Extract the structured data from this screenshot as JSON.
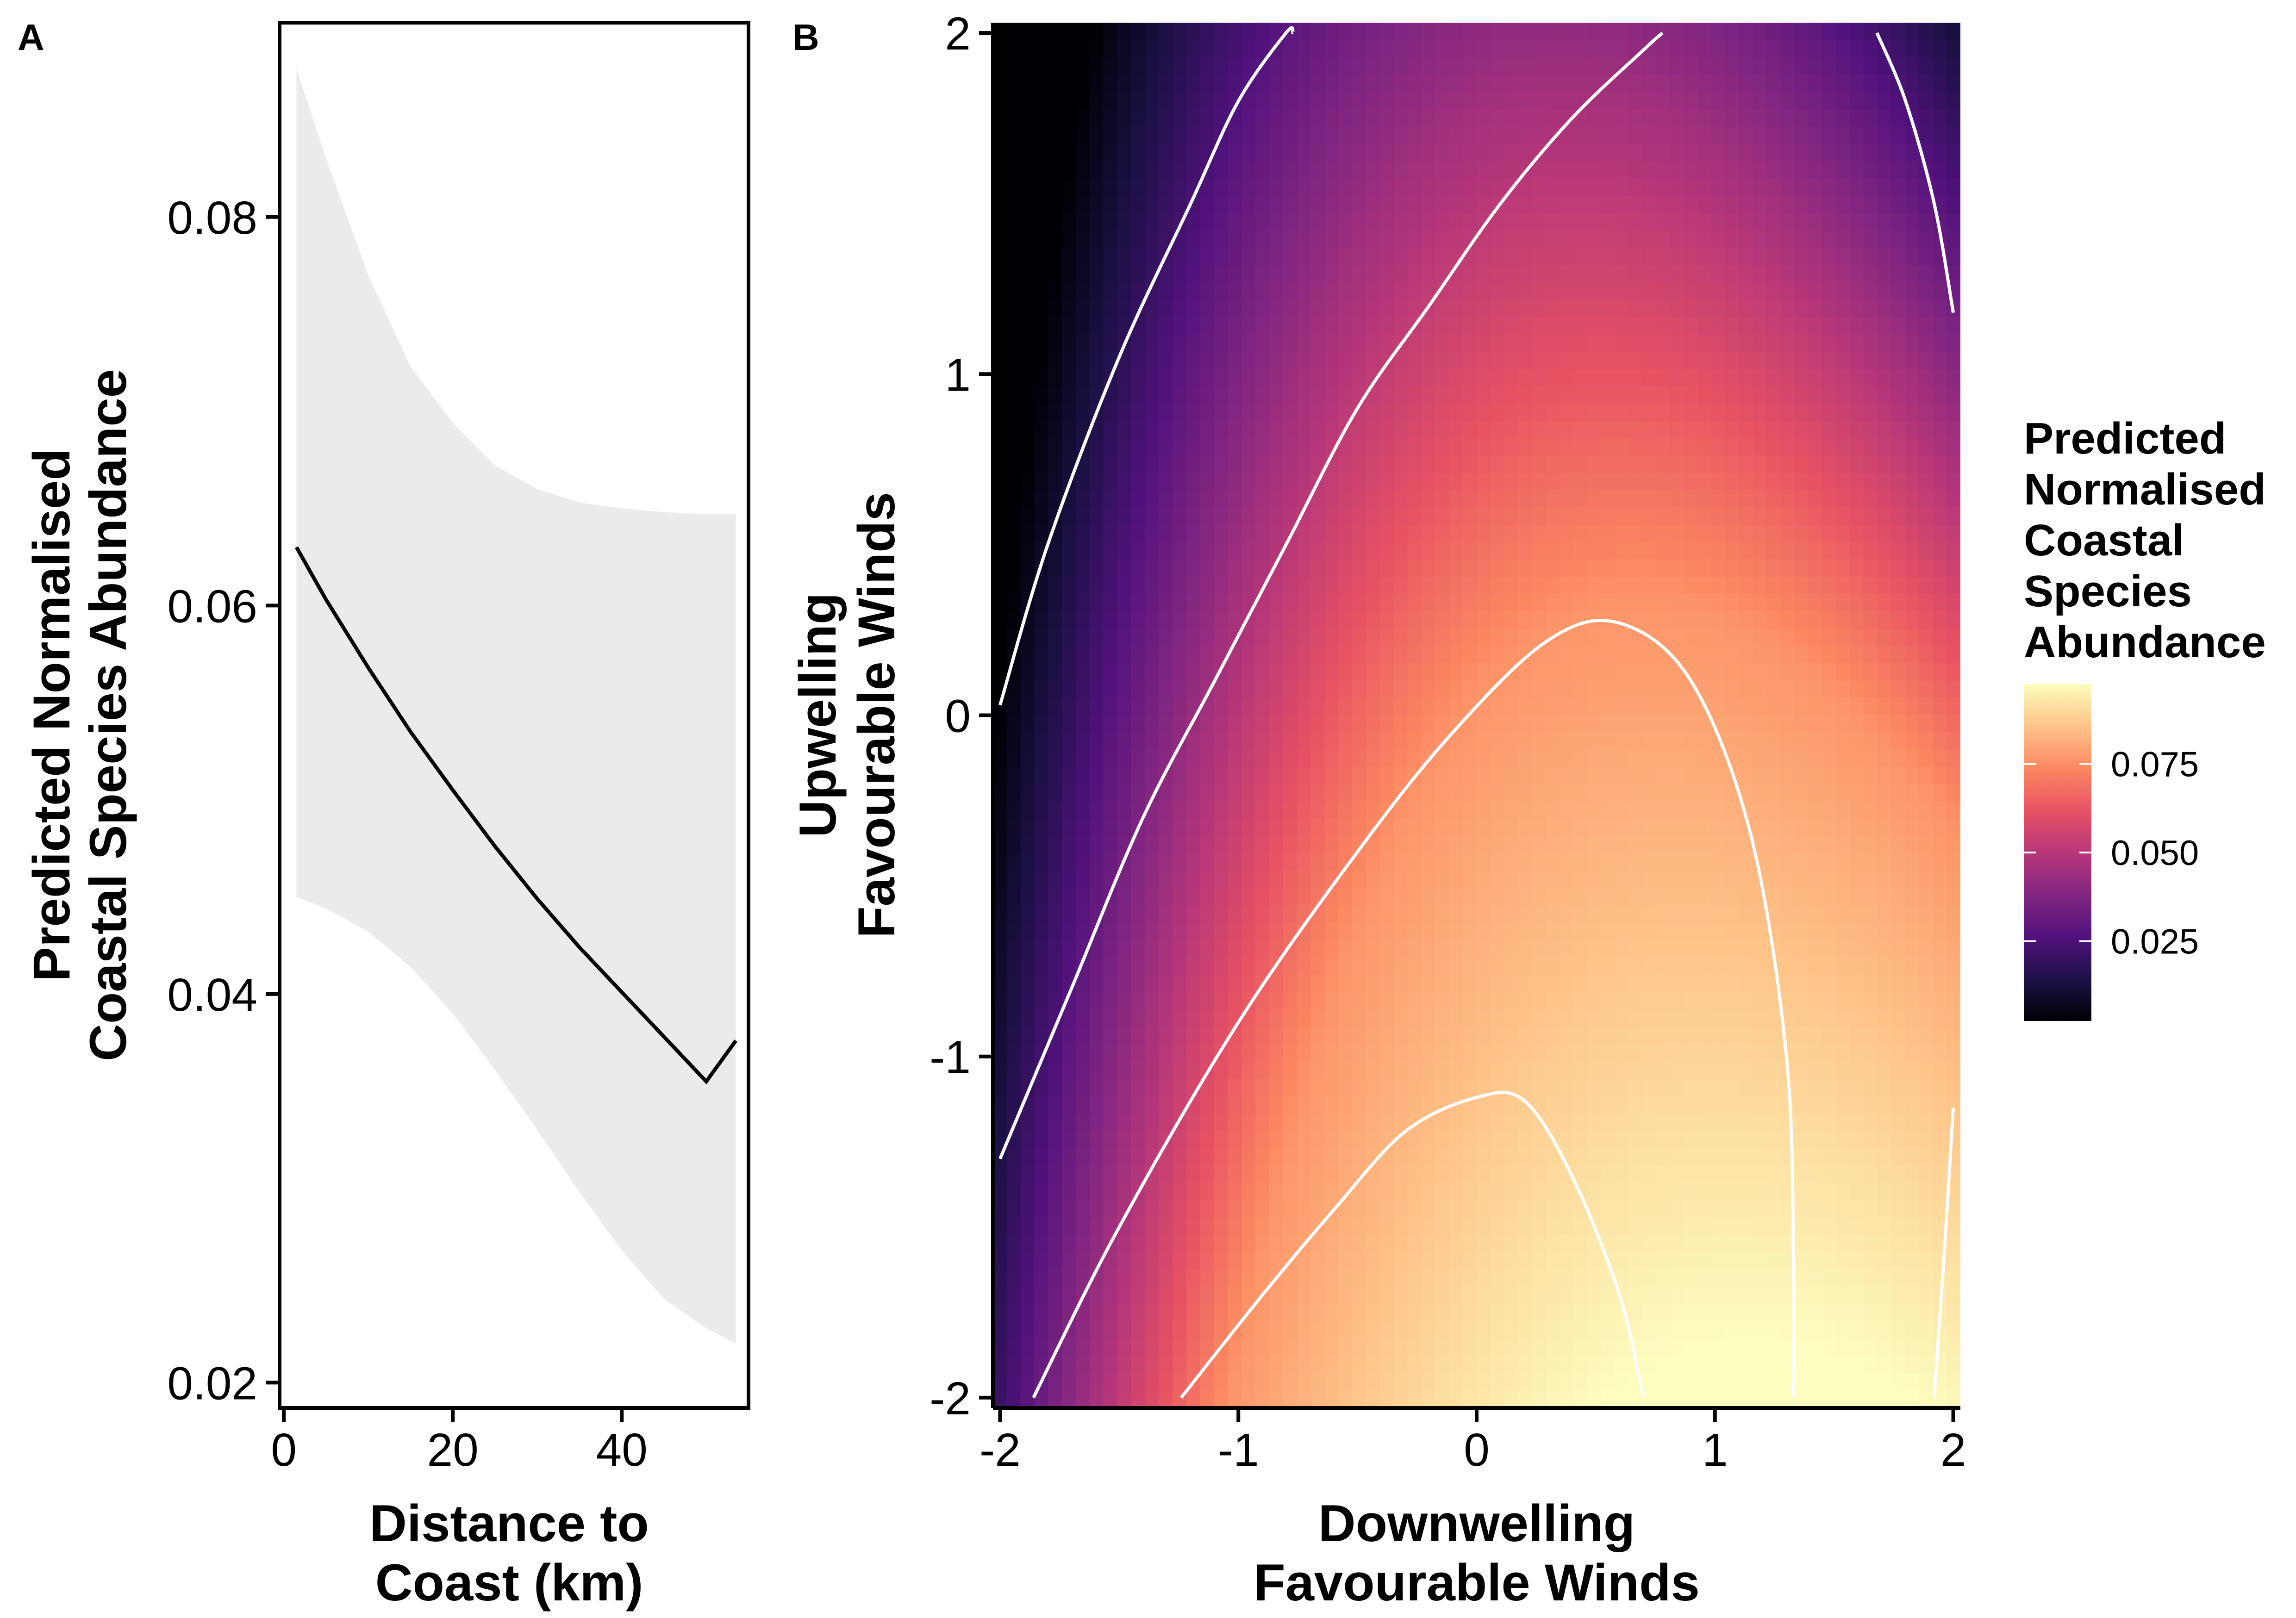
{
  "panels": {
    "a": {
      "tag": "A"
    },
    "b": {
      "tag": "B"
    }
  },
  "chart_data": [
    {
      "panel": "A",
      "type": "line",
      "xlabel": [
        "Distance to",
        "Coast (km)"
      ],
      "ylabel": [
        "Predicted Normalised",
        "Coastal Species Abundance"
      ],
      "xlim": [
        -0.5,
        55
      ],
      "ylim": [
        0.0187,
        0.09
      ],
      "x_ticks": [
        0,
        20,
        40
      ],
      "x_tick_labels": [
        "0",
        "20",
        "40"
      ],
      "y_ticks": [
        0.02,
        0.04,
        0.06,
        0.08
      ],
      "y_tick_labels": [
        "0.02",
        "0.04",
        "0.06",
        "0.08"
      ],
      "series": [
        {
          "x": [
            1.5,
            5,
            10,
            15,
            20,
            25,
            30,
            35,
            40,
            45,
            50,
            53.5
          ],
          "y": [
            0.063,
            0.0603,
            0.0568,
            0.0535,
            0.0505,
            0.0476,
            0.0449,
            0.0424,
            0.0401,
            0.0378,
            0.0355,
            0.0376
          ],
          "lower": [
            0.045,
            0.0444,
            0.0432,
            0.0414,
            0.039,
            0.0361,
            0.033,
            0.0298,
            0.0268,
            0.0243,
            0.0228,
            0.022
          ],
          "upper": [
            0.0876,
            0.083,
            0.077,
            0.0723,
            0.0694,
            0.0672,
            0.066,
            0.0653,
            0.065,
            0.0648,
            0.0647,
            0.0647
          ]
        }
      ],
      "colors": {
        "line": "#000000",
        "ribbon": "#ebebeb"
      }
    },
    {
      "panel": "B",
      "type": "heatmap",
      "xlabel": [
        "Downwelling",
        "Favourable Winds"
      ],
      "ylabel": [
        "Upwelling",
        "Favourable Winds"
      ],
      "xlim": [
        -2.03,
        2.03
      ],
      "ylim": [
        -2.03,
        2.03
      ],
      "x_ticks": [
        -2,
        -1,
        0,
        1,
        2
      ],
      "x_tick_labels": [
        "-2",
        "-1",
        "0",
        "1",
        "2"
      ],
      "y_ticks": [
        -2,
        -1,
        0,
        1,
        2
      ],
      "y_tick_labels": [
        "-2",
        "-1",
        "0",
        "1",
        "2"
      ],
      "colorbar": {
        "title": [
          "Predicted",
          "Normalised",
          "Coastal",
          "Species",
          "Abundance"
        ],
        "range": [
          0.0025,
          0.0975
        ],
        "ticks": [
          0.025,
          0.05,
          0.075
        ],
        "tick_labels": [
          "0.025",
          "0.050",
          "0.075"
        ],
        "colormap": "magma",
        "stops": [
          "#000004",
          "#1d1147",
          "#51127c",
          "#822681",
          "#b73779",
          "#e75263",
          "#fc8961",
          "#fec488",
          "#fcfdbf"
        ]
      },
      "contours": [
        {
          "x": [
            -2.0,
            -1.8,
            -1.5,
            -1.2,
            -1.0,
            -0.8,
            -0.77
          ],
          "y": [
            0.03,
            0.5,
            1.05,
            1.5,
            1.8,
            2.0,
            2.0
          ]
        },
        {
          "x": [
            -2.0,
            -1.7,
            -1.4,
            -1.1,
            -0.8,
            -0.5,
            -0.2,
            0.1,
            0.4,
            0.7,
            0.78
          ],
          "y": [
            -1.3,
            -0.8,
            -0.3,
            0.1,
            0.5,
            0.9,
            1.2,
            1.5,
            1.75,
            1.95,
            2.0
          ]
        },
        {
          "x": [
            -1.86,
            -1.5,
            -1.0,
            -0.5,
            -0.1,
            0.3,
            0.6,
            0.9,
            1.15,
            1.3,
            1.33,
            1.33
          ],
          "y": [
            -2.0,
            -1.5,
            -0.9,
            -0.4,
            -0.05,
            0.22,
            0.27,
            0.1,
            -0.35,
            -1.0,
            -1.6,
            -2.0
          ]
        },
        {
          "x": [
            -1.24,
            -0.9,
            -0.6,
            -0.3,
            0.0,
            0.2,
            0.4,
            0.6,
            0.7
          ],
          "y": [
            -2.0,
            -1.7,
            -1.45,
            -1.22,
            -1.12,
            -1.13,
            -1.35,
            -1.7,
            -2.0
          ]
        },
        {
          "x": [
            1.68,
            1.8,
            1.92,
            2.0
          ],
          "y": [
            2.0,
            1.8,
            1.5,
            1.18
          ]
        },
        {
          "x": [
            1.92,
            1.96,
            2.0
          ],
          "y": [
            -2.0,
            -1.6,
            -1.15
          ]
        }
      ]
    }
  ]
}
